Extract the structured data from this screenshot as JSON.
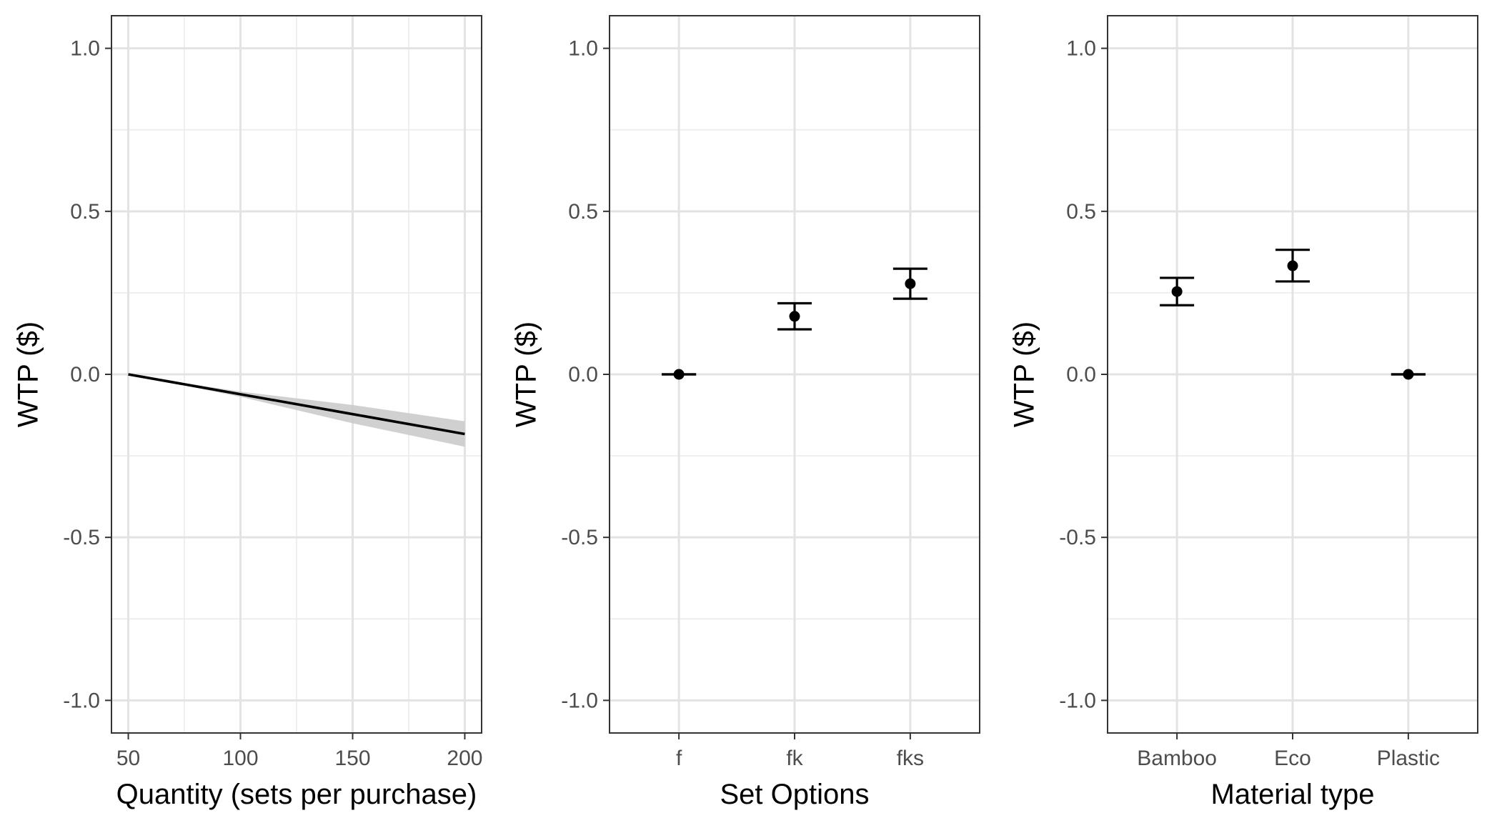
{
  "chart_data": [
    {
      "type": "line",
      "xlabel": "Quantity (sets per purchase)",
      "ylabel": "WTP ($)",
      "xlim": [
        42.5,
        207.5
      ],
      "ylim": [
        -1.1,
        1.1
      ],
      "x_ticks": [
        50,
        100,
        150,
        200
      ],
      "x_tick_labels": [
        "50",
        "100",
        "150",
        "200"
      ],
      "y_ticks": [
        -1.0,
        -0.5,
        0.0,
        0.5,
        1.0
      ],
      "y_tick_labels": [
        "-1.0",
        "-0.5",
        "0.0",
        "0.5",
        "1.0"
      ],
      "grid": true,
      "series": [
        {
          "x": [
            50,
            100,
            150,
            200
          ],
          "y": [
            0.0,
            -0.061,
            -0.122,
            -0.183
          ],
          "ci_lower": [
            0.0,
            -0.069,
            -0.15,
            -0.222
          ],
          "ci_upper": [
            0.0,
            -0.053,
            -0.094,
            -0.144
          ],
          "color": "#000000",
          "ci_color": "#c8c8c8"
        }
      ]
    },
    {
      "type": "scatter",
      "xlabel": "Set Options",
      "ylabel": "WTP ($)",
      "ylim": [
        -1.1,
        1.1
      ],
      "categories": [
        "f",
        "fk",
        "fks"
      ],
      "y_ticks": [
        -1.0,
        -0.5,
        0.0,
        0.5,
        1.0
      ],
      "y_tick_labels": [
        "-1.0",
        "-0.5",
        "0.0",
        "0.5",
        "1.0"
      ],
      "grid": true,
      "series": [
        {
          "values": [
            0.0,
            0.178,
            0.278
          ],
          "lower": [
            0.0,
            0.138,
            0.232
          ],
          "upper": [
            0.0,
            0.218,
            0.324
          ],
          "color": "#000000"
        }
      ]
    },
    {
      "type": "scatter",
      "xlabel": "Material type",
      "ylabel": "WTP ($)",
      "ylim": [
        -1.1,
        1.1
      ],
      "categories": [
        "Bamboo",
        "Eco",
        "Plastic"
      ],
      "y_ticks": [
        -1.0,
        -0.5,
        0.0,
        0.5,
        1.0
      ],
      "y_tick_labels": [
        "-1.0",
        "-0.5",
        "0.0",
        "0.5",
        "1.0"
      ],
      "grid": true,
      "series": [
        {
          "values": [
            0.254,
            0.333,
            0.0
          ],
          "lower": [
            0.212,
            0.285,
            0.0
          ],
          "upper": [
            0.296,
            0.382,
            0.0
          ],
          "color": "#000000"
        }
      ]
    }
  ]
}
